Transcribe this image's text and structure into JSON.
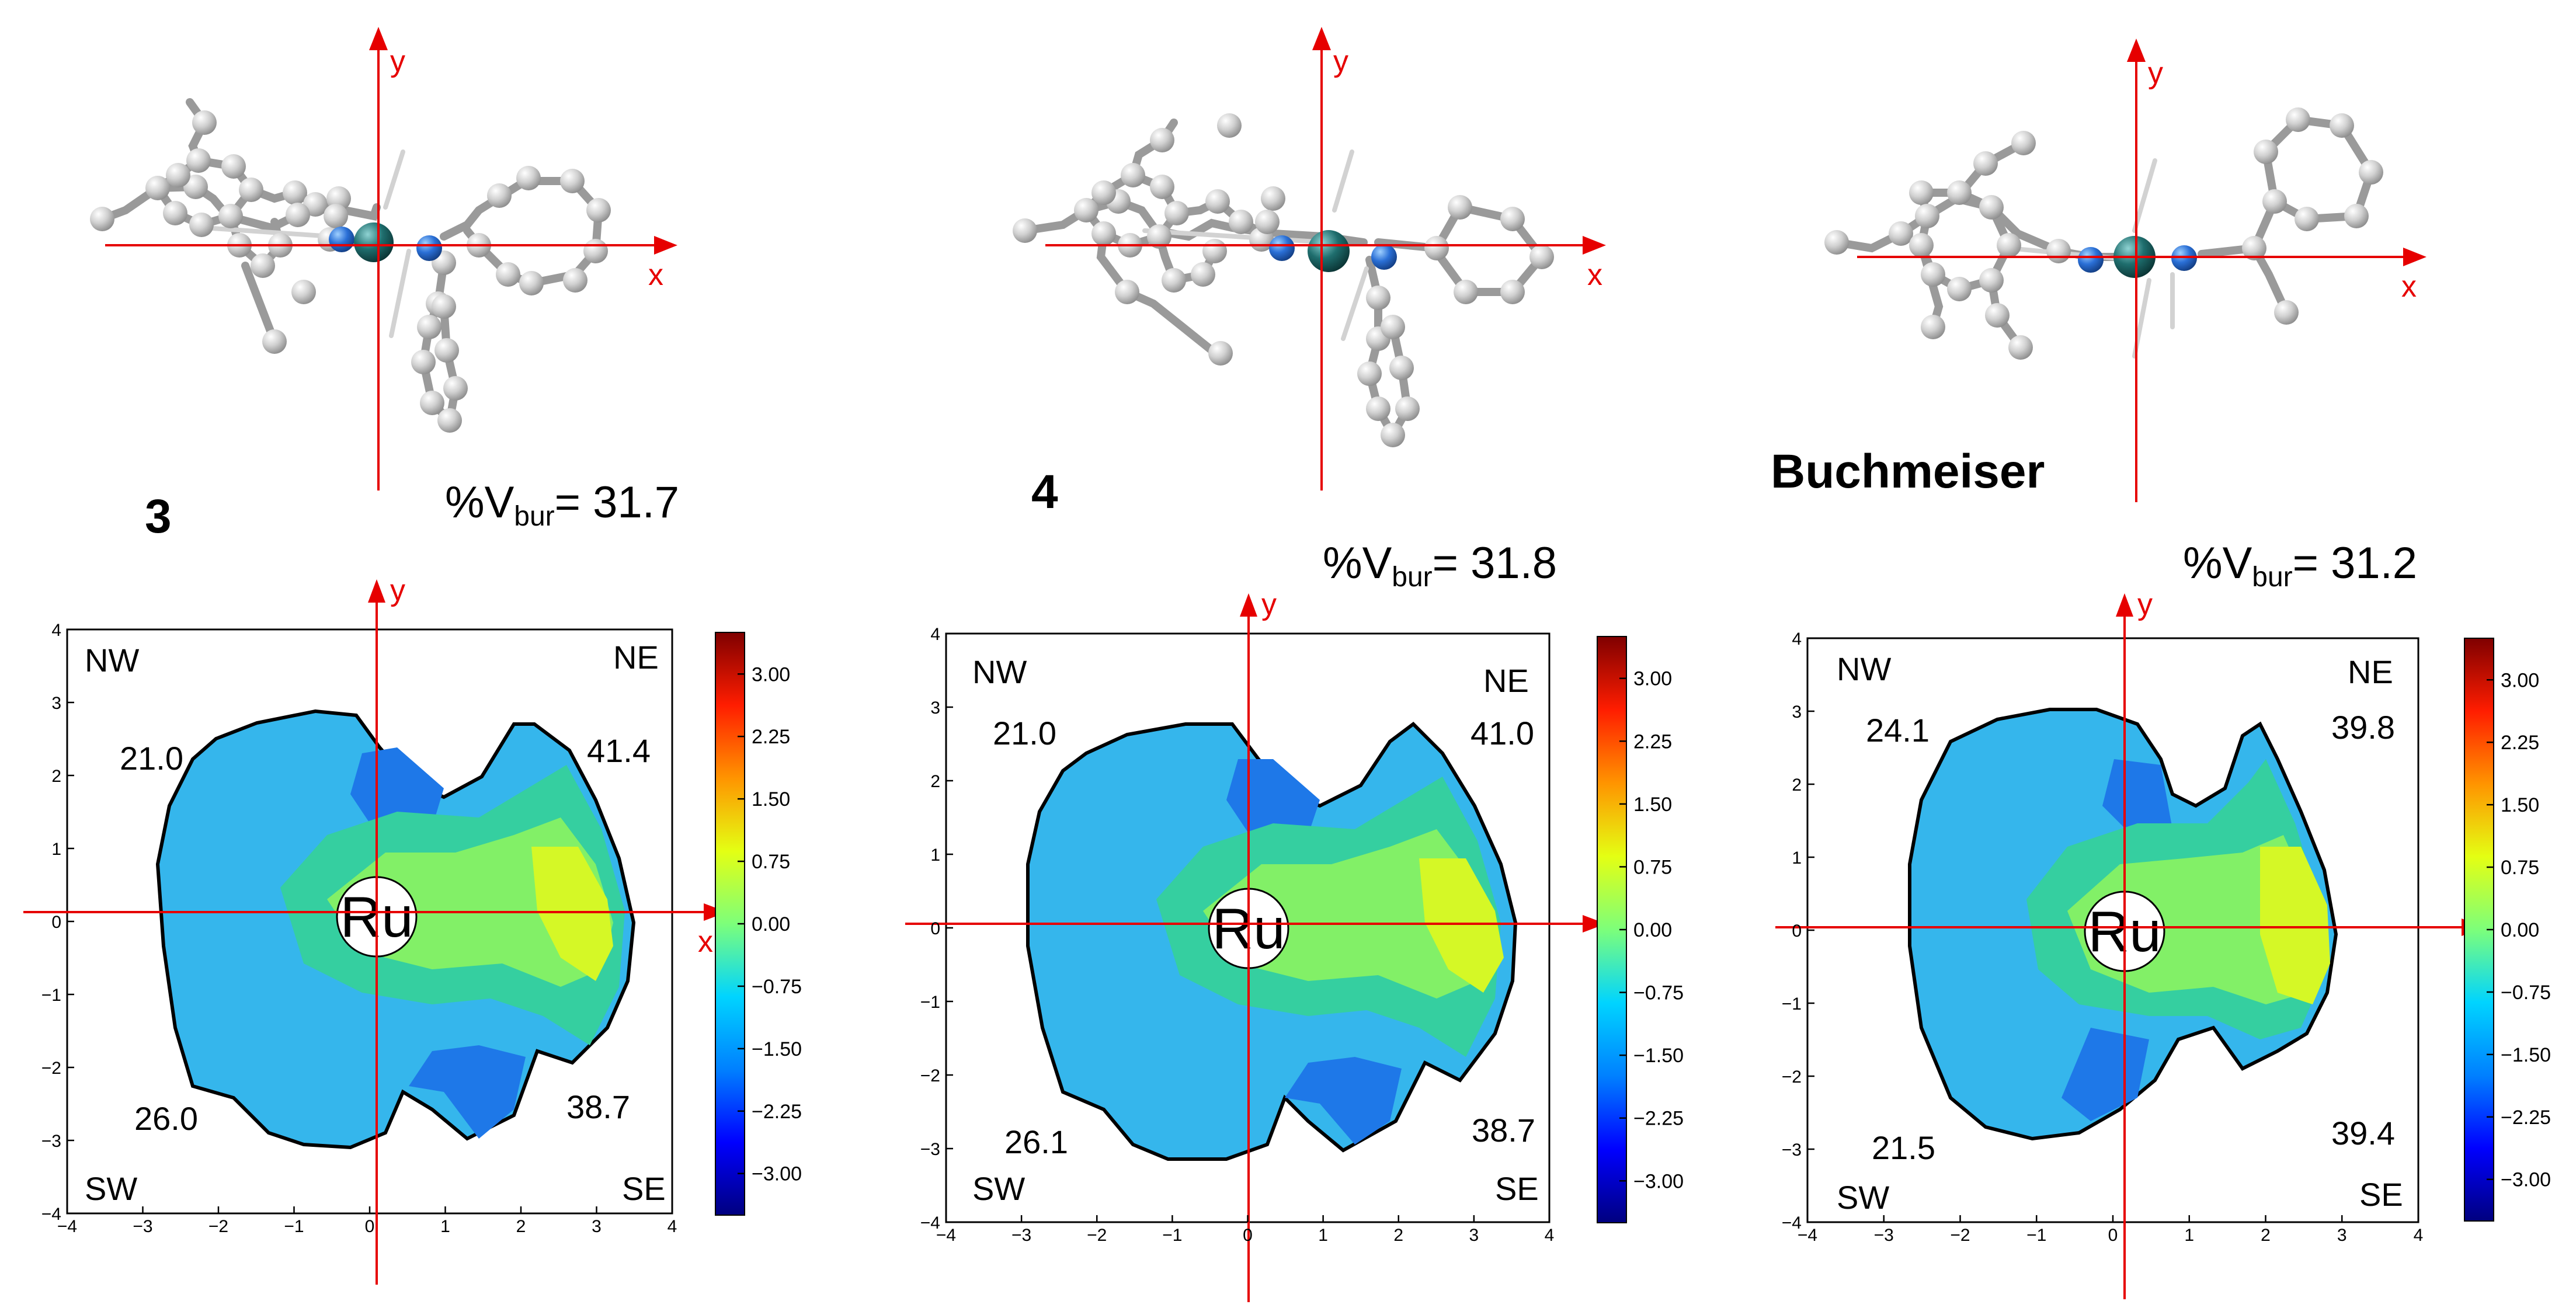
{
  "chart_data": [
    {
      "type": "heatmap",
      "compound": "3",
      "vbur": {
        "prefix": "%V",
        "sub": "bur",
        "eq": "= ",
        "value": "31.7"
      },
      "quadrants": {
        "NW": "21.0",
        "NE": "41.4",
        "SW": "26.0",
        "SE": "38.7"
      },
      "corner_labels": {
        "NW": "NW",
        "NE": "NE",
        "SW": "SW",
        "SE": "SE"
      },
      "metal_label": "Ru",
      "xlim": [
        -4,
        4
      ],
      "ylim": [
        -4,
        4
      ],
      "xticks": [
        "−4",
        "−3",
        "−2",
        "−1",
        "0",
        "1",
        "2",
        "3",
        "4"
      ],
      "yticks": [
        "4",
        "3",
        "2",
        "1",
        "0",
        "−1",
        "−2",
        "−3",
        "−4"
      ],
      "map_axis_labels": {
        "x": "x",
        "y": "y"
      },
      "colorbar": {
        "range": [
          -3.5,
          3.5
        ],
        "ticks": [
          "3.00",
          "2.25",
          "1.50",
          "0.75",
          "0.00",
          "−0.75",
          "−1.50",
          "−2.25",
          "−3.00"
        ]
      }
    },
    {
      "type": "heatmap",
      "compound": "4",
      "vbur": {
        "prefix": "%V",
        "sub": "bur",
        "eq": "= ",
        "value": "31.8"
      },
      "quadrants": {
        "NW": "21.0",
        "NE": "41.0",
        "SW": "26.1",
        "SE": "38.7"
      },
      "corner_labels": {
        "NW": "NW",
        "NE": "NE",
        "SW": "SW",
        "SE": "SE"
      },
      "metal_label": "Ru",
      "xlim": [
        -4,
        4
      ],
      "ylim": [
        -4,
        4
      ],
      "xticks": [
        "−4",
        "−3",
        "−2",
        "−1",
        "0",
        "1",
        "2",
        "3",
        "4"
      ],
      "yticks": [
        "4",
        "3",
        "2",
        "1",
        "0",
        "−1",
        "−2",
        "−3",
        "−4"
      ],
      "map_axis_labels": {
        "x": "",
        "y": "y"
      },
      "colorbar": {
        "range": [
          -3.5,
          3.5
        ],
        "ticks": [
          "3.00",
          "2.25",
          "1.50",
          "0.75",
          "0.00",
          "−0.75",
          "−1.50",
          "−2.25",
          "−3.00"
        ]
      }
    },
    {
      "type": "heatmap",
      "compound": "Buchmeiser",
      "vbur": {
        "prefix": "%V",
        "sub": "bur",
        "eq": "= ",
        "value": "31.2"
      },
      "quadrants": {
        "NW": "24.1",
        "NE": "39.8",
        "SW": "21.5",
        "SE": "39.4"
      },
      "corner_labels": {
        "NW": "NW",
        "NE": "NE",
        "SW": "SW",
        "SE": "SE"
      },
      "metal_label": "Ru",
      "xlim": [
        -4,
        4
      ],
      "ylim": [
        -4,
        4
      ],
      "xticks": [
        "−4",
        "−3",
        "−2",
        "−1",
        "0",
        "1",
        "2",
        "3",
        "4"
      ],
      "yticks": [
        "4",
        "3",
        "2",
        "1",
        "0",
        "−1",
        "−2",
        "−3",
        "−4"
      ],
      "map_axis_labels": {
        "x": "",
        "y": "y"
      },
      "colorbar": {
        "range": [
          -3.5,
          3.5
        ],
        "ticks": [
          "3.00",
          "2.25",
          "1.50",
          "0.75",
          "0.00",
          "−0.75",
          "−1.50",
          "−2.25",
          "−3.00"
        ]
      }
    }
  ],
  "structure_axis_labels": {
    "x": "x",
    "y": "y"
  },
  "colors": {
    "axis": "#e60000",
    "atom_carbon": "#c8c8c8",
    "atom_nitrogen": "#2a6fd6",
    "atom_ruthenium": "#1f6e6e"
  }
}
